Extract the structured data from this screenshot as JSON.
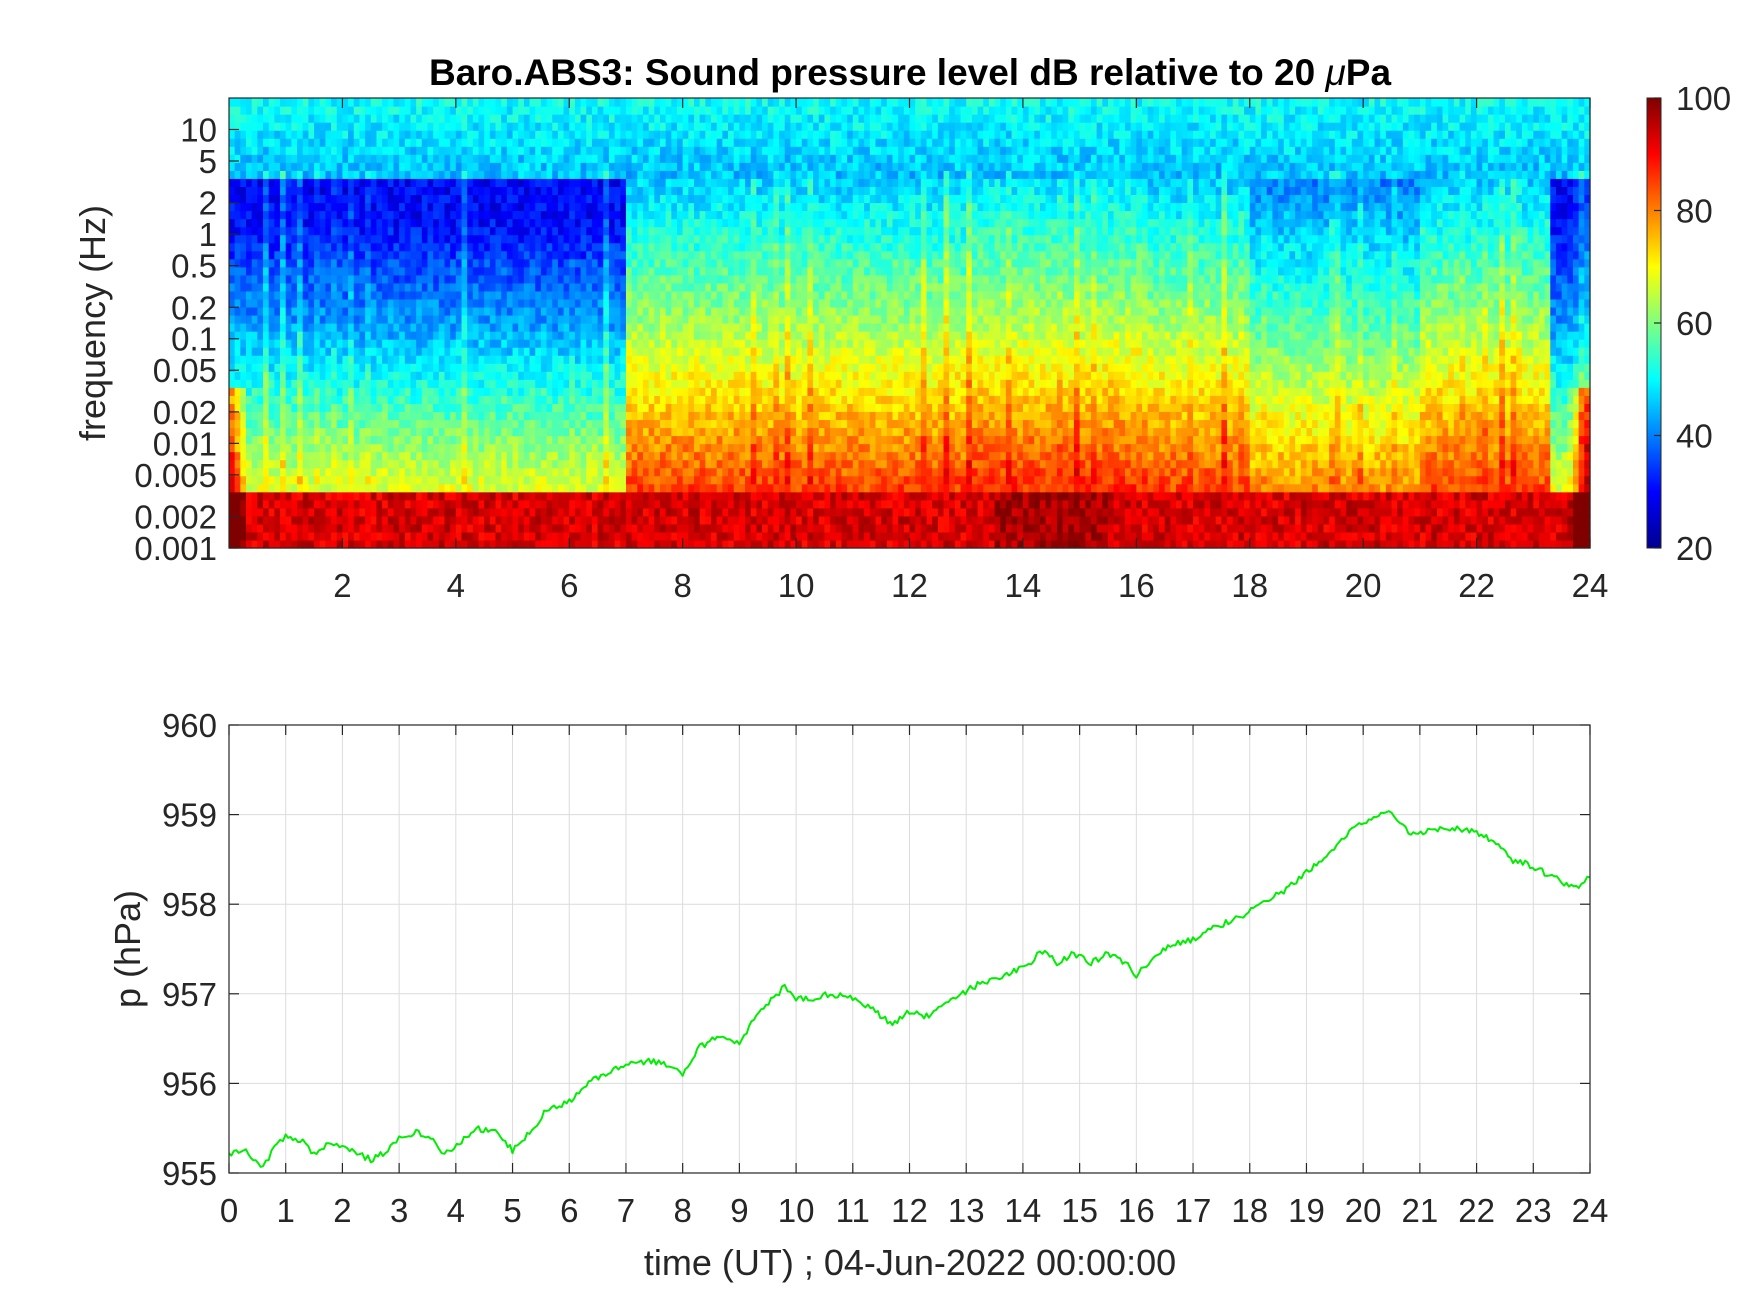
{
  "chart_data": [
    {
      "type": "heatmap",
      "title_prefix": "Baro.ABS3: Sound pressure level dB relative to 20 ",
      "title_mu": "μ",
      "title_suffix": "Pa",
      "ylabel": "frequency (Hz)",
      "xlim": [
        0,
        24
      ],
      "x_ticks": [
        "2",
        "4",
        "6",
        "8",
        "10",
        "12",
        "14",
        "16",
        "18",
        "20",
        "22",
        "24"
      ],
      "y_scale": "log",
      "ylim_hz": [
        0.001,
        20
      ],
      "y_ticks": [
        "10",
        "5",
        "2",
        "1",
        "0.5",
        "0.2",
        "0.1",
        "0.05",
        "0.02",
        "0.01",
        "0.005",
        "0.002",
        "0.001"
      ],
      "colormap": "jet",
      "clim": [
        20,
        100
      ],
      "colorbar_ticks": [
        "100",
        "80",
        "60",
        "40",
        "20"
      ],
      "description_values": {
        "quiet_hours_level_low_freq_db": 68,
        "active_hours_level_low_freq_db": 85,
        "lowest_band_level_db": 93,
        "high_freq_level_db": 45,
        "active_period_start_h": 7.0
      }
    },
    {
      "type": "line",
      "ylabel": "p (hPa)",
      "xlabel": "time (UT) ; 04-Jun-2022 00:00:00",
      "xlim": [
        0,
        24
      ],
      "ylim": [
        955,
        960
      ],
      "x_ticks": [
        "0",
        "1",
        "2",
        "3",
        "4",
        "5",
        "6",
        "7",
        "8",
        "9",
        "10",
        "11",
        "12",
        "13",
        "14",
        "15",
        "16",
        "17",
        "18",
        "19",
        "20",
        "21",
        "22",
        "23",
        "24"
      ],
      "y_ticks": [
        "960",
        "959",
        "958",
        "957",
        "956",
        "955"
      ],
      "grid": true,
      "line_color": "#00ee00",
      "series": [
        {
          "x": [
            0,
            0.3,
            0.6,
            0.8,
            1.0,
            1.3,
            1.5,
            1.8,
            2.0,
            2.3,
            2.5,
            2.8,
            3.0,
            3.3,
            3.6,
            3.8,
            4.1,
            4.4,
            4.7,
            5.0,
            5.3,
            5.6,
            6.0,
            6.3,
            6.6,
            7.0,
            7.4,
            7.8,
            8.0,
            8.3,
            8.7,
            9.0,
            9.3,
            9.6,
            9.8,
            10.0,
            10.3,
            10.6,
            11.0,
            11.4,
            11.7,
            12.0,
            12.3,
            12.6,
            12.9,
            13.2,
            13.5,
            13.8,
            14.1,
            14.3,
            14.6,
            14.9,
            15.2,
            15.5,
            15.8,
            16.0,
            16.3,
            16.6,
            17.0,
            17.4,
            17.8,
            18.2,
            18.6,
            19.0,
            19.4,
            19.8,
            20.1,
            20.4,
            20.6,
            20.8,
            21.1,
            21.4,
            21.7,
            22.0,
            22.3,
            22.6,
            22.9,
            23.2,
            23.5,
            23.8,
            24.0
          ],
          "y": [
            955.22,
            955.25,
            955.05,
            955.3,
            955.4,
            955.35,
            955.2,
            955.35,
            955.3,
            955.2,
            955.15,
            955.25,
            955.4,
            955.45,
            955.38,
            955.2,
            955.35,
            955.5,
            955.45,
            955.25,
            955.45,
            955.7,
            955.8,
            956.0,
            956.1,
            956.2,
            956.25,
            956.2,
            956.1,
            956.4,
            956.55,
            956.45,
            956.75,
            956.95,
            957.08,
            956.95,
            956.95,
            957.0,
            956.95,
            956.8,
            956.65,
            956.8,
            956.75,
            956.85,
            957.0,
            957.1,
            957.15,
            957.25,
            957.3,
            957.5,
            957.35,
            957.45,
            957.35,
            957.45,
            957.35,
            957.2,
            957.4,
            957.55,
            957.6,
            957.75,
            957.85,
            958.0,
            958.15,
            958.35,
            958.55,
            958.85,
            958.95,
            959.05,
            958.95,
            958.8,
            958.8,
            958.85,
            958.85,
            958.8,
            958.7,
            958.5,
            958.45,
            958.35,
            958.25,
            958.2,
            958.3
          ]
        }
      ]
    }
  ]
}
